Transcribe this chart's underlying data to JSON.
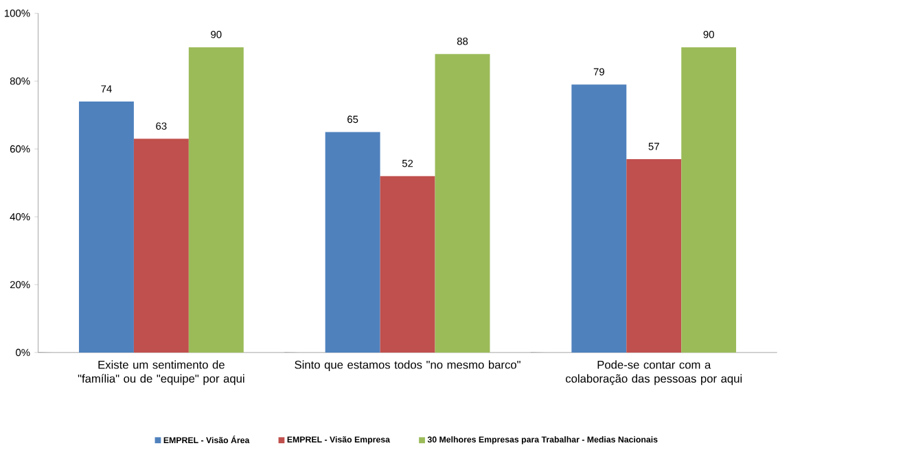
{
  "chart_data": {
    "type": "bar",
    "categories": [
      "Existe um sentimento de \"família\" ou de \"equipe\" por aqui",
      "Sinto que estamos todos \"no mesmo barco\"",
      "Pode-se contar com a colaboração das pessoas por aqui"
    ],
    "series": [
      {
        "name": "EMPREL - Visão Área",
        "color": "#4f81bd",
        "values": [
          74,
          65,
          79
        ]
      },
      {
        "name": "EMPREL - Visão Empresa",
        "color": "#c0504d",
        "values": [
          63,
          52,
          57
        ]
      },
      {
        "name": "30 Melhores Empresas para Trabalhar - Medias Nacionais",
        "color": "#9bbb59",
        "values": [
          90,
          88,
          90
        ]
      }
    ],
    "ylim": [
      0,
      100
    ],
    "yticks": [
      {
        "value": 0,
        "label": "0%"
      },
      {
        "value": 20,
        "label": "20%"
      },
      {
        "value": 40,
        "label": "40%"
      },
      {
        "value": 60,
        "label": "60%"
      },
      {
        "value": 80,
        "label": "80%"
      },
      {
        "value": 100,
        "label": "100%"
      }
    ],
    "data_labels": true,
    "grid": false,
    "legend": "bottom"
  }
}
